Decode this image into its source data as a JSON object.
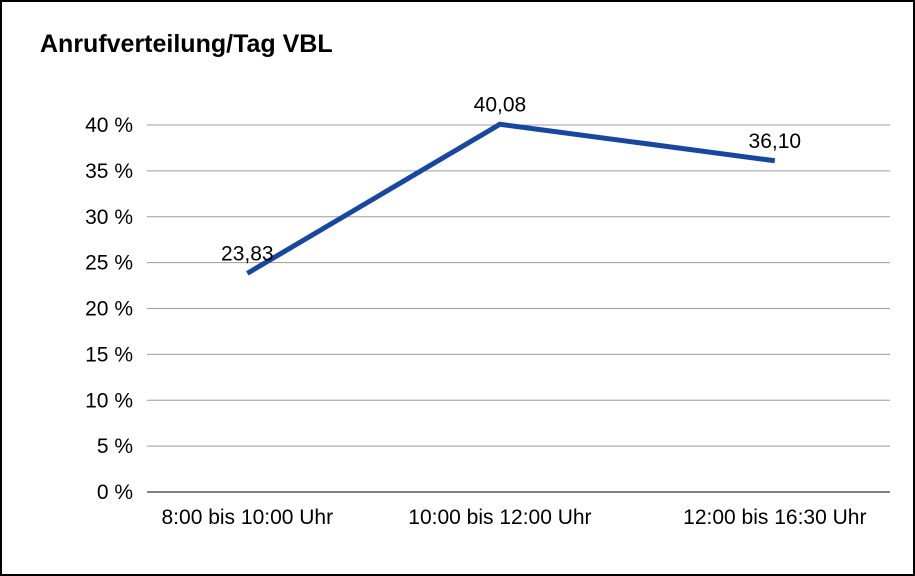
{
  "chart_data": {
    "type": "line",
    "title": "Anrufverteilung/Tag VBL",
    "categories": [
      "8:00 bis 10:00 Uhr",
      "10:00 bis 12:00 Uhr",
      "12:00 bis 16:30 Uhr"
    ],
    "series": [
      {
        "values": [
          23.83,
          40.08,
          36.1
        ],
        "value_labels": [
          "23,83",
          "40,08",
          "36,10"
        ],
        "color": "#17479e"
      }
    ],
    "xlabel": "",
    "ylabel": "",
    "ylim": [
      0,
      40
    ],
    "yticks": [
      {
        "value": 0,
        "label": "0 %"
      },
      {
        "value": 5,
        "label": "5 %"
      },
      {
        "value": 10,
        "label": "10 %"
      },
      {
        "value": 15,
        "label": "15 %"
      },
      {
        "value": 20,
        "label": "20 %"
      },
      {
        "value": 25,
        "label": "25 %"
      },
      {
        "value": 30,
        "label": "30 %"
      },
      {
        "value": 35,
        "label": "35 %"
      },
      {
        "value": 40,
        "label": "40 %"
      }
    ],
    "grid": true,
    "legend": false
  },
  "colors": {
    "line": "#17479e",
    "grid": "#9d9d9d",
    "axis": "#000000",
    "text": "#000000",
    "background": "#ffffff",
    "border": "#000000"
  }
}
